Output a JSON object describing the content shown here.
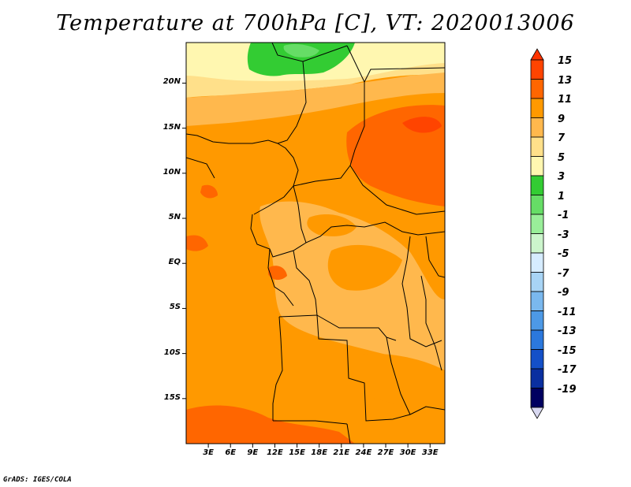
{
  "title": "Temperature at 700hPa [C], VT: 2020013006",
  "credit": "GrADS: IGES/COLA",
  "map": {
    "lat_labels": [
      "20N",
      "15N",
      "10N",
      "5N",
      "EQ",
      "5S",
      "10S",
      "15S"
    ],
    "lat_values": [
      20,
      15,
      10,
      5,
      0,
      -5,
      -10,
      -15
    ],
    "lon_labels": [
      "3E",
      "6E",
      "9E",
      "12E",
      "15E",
      "18E",
      "21E",
      "24E",
      "27E",
      "30E",
      "33E"
    ],
    "lon_values": [
      3,
      6,
      9,
      12,
      15,
      18,
      21,
      24,
      27,
      30,
      33
    ],
    "lon_range": [
      0,
      35
    ],
    "lat_range": [
      -20,
      24.5
    ]
  },
  "colorbar": {
    "labels": [
      "15",
      "13",
      "11",
      "9",
      "7",
      "5",
      "3",
      "1",
      "-1",
      "-3",
      "-5",
      "-7",
      "-9",
      "-11",
      "-13",
      "-15",
      "-17",
      "-19"
    ],
    "colors": [
      "#ff3300",
      "#ff4400",
      "#ff6600",
      "#ff9900",
      "#ffb84d",
      "#ffe08a",
      "#fff7b0",
      "#33cc33",
      "#66dd66",
      "#99ee99",
      "#ccf5cc",
      "#d6ecff",
      "#a8d4f5",
      "#7ab8ee",
      "#4d99e6",
      "#2b78dd",
      "#1450c8",
      "#0a2fa0",
      "#000060",
      "#d8d8f0"
    ]
  }
}
